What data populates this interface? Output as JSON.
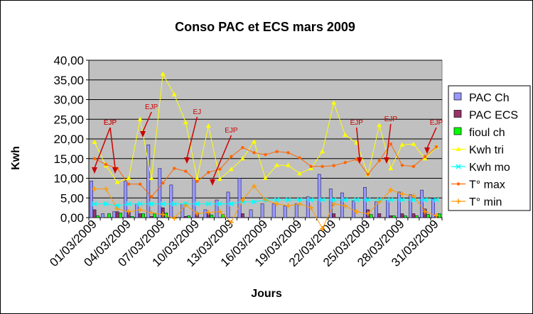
{
  "chart_data": {
    "type": "bar",
    "title": "Conso PAC et ECS mars 2009",
    "xlabel": "Jours",
    "ylabel": "Kwh",
    "ylim": [
      0,
      40
    ],
    "y_ticks": [
      "0,00",
      "5,00",
      "10,00",
      "15,00",
      "20,00",
      "25,00",
      "30,00",
      "35,00",
      "40,00"
    ],
    "x_ticks": [
      "01/03/2009",
      "04/03/2009",
      "07/03/2009",
      "10/03/2009",
      "13/03/2009",
      "16/03/2009",
      "19/03/2009",
      "22/03/2009",
      "25/03/2009",
      "28/03/2009",
      "31/03/2009"
    ],
    "grid": true,
    "legend_position": "right",
    "categories": [
      "01/03/2009",
      "02/03/2009",
      "03/03/2009",
      "04/03/2009",
      "05/03/2009",
      "06/03/2009",
      "07/03/2009",
      "08/03/2009",
      "09/03/2009",
      "10/03/2009",
      "11/03/2009",
      "12/03/2009",
      "13/03/2009",
      "14/03/2009",
      "15/03/2009",
      "16/03/2009",
      "17/03/2009",
      "18/03/2009",
      "19/03/2009",
      "20/03/2009",
      "21/03/2009",
      "22/03/2009",
      "23/03/2009",
      "24/03/2009",
      "25/03/2009",
      "26/03/2009",
      "27/03/2009",
      "28/03/2009",
      "29/03/2009",
      "30/03/2009",
      "31/03/2009"
    ],
    "series": [
      {
        "name": "PAC Ch",
        "kind": "bar",
        "color": "#9999ff",
        "values": [
          9.3,
          1.0,
          1.5,
          9.3,
          3.5,
          18.5,
          12.5,
          8.3,
          3.5,
          10.0,
          2.0,
          4.5,
          6.5,
          10.0,
          2.0,
          3.5,
          3.5,
          3.0,
          3.5,
          5.3,
          11.0,
          7.3,
          6.3,
          4.2,
          7.7,
          4.0,
          4.5,
          6.5,
          5.8,
          7.0,
          4.8
        ]
      },
      {
        "name": "PAC ECS",
        "kind": "bar",
        "color": "#993366",
        "values": [
          2.0,
          0.0,
          1.5,
          1.5,
          1.0,
          0.3,
          2.5,
          0.0,
          0.3,
          1.2,
          1.0,
          0.0,
          0.0,
          1.0,
          0.0,
          0.0,
          0.0,
          0.0,
          0.0,
          0.0,
          0.0,
          1.0,
          0.0,
          0.0,
          2.0,
          1.0,
          0.5,
          1.0,
          1.0,
          2.2,
          0.5
        ]
      },
      {
        "name": "fioul ch",
        "kind": "bar",
        "color": "#00ff00",
        "values": [
          0.5,
          1.0,
          1.2,
          0.3,
          1.0,
          1.0,
          1.2,
          0.0,
          0.5,
          0.0,
          0.7,
          0.8,
          0.0,
          0.0,
          0.0,
          0.0,
          0.0,
          0.0,
          0.0,
          0.0,
          0.0,
          0.0,
          0.0,
          0.0,
          0.8,
          0.0,
          0.5,
          0.5,
          0.5,
          0.8,
          1.0
        ]
      },
      {
        "name": "Kwh tri",
        "kind": "line",
        "color": "#ffff00",
        "values": [
          19.2,
          13.2,
          9.0,
          10.0,
          25.0,
          10.0,
          36.5,
          31.3,
          24.2,
          10.0,
          23.3,
          9.8,
          12.3,
          15.0,
          19.3,
          10.0,
          13.3,
          13.3,
          11.2,
          12.5,
          16.8,
          29.2,
          21.0,
          19.0,
          11.0,
          23.5,
          12.5,
          18.5,
          18.7,
          15.0,
          18.0
        ]
      },
      {
        "name": "Kwh mo",
        "kind": "line",
        "color": "#00ffff",
        "values": [
          3.5,
          3.5,
          3.0,
          3.5,
          3.5,
          3.5,
          3.5,
          3.5,
          3.5,
          3.5,
          3.5,
          3.5,
          3.5,
          4.0,
          4.0,
          4.5,
          4.5,
          4.5,
          4.5,
          4.5,
          4.5,
          4.5,
          4.5,
          4.5,
          4.5,
          4.5,
          4.5,
          4.5,
          4.5,
          4.5,
          4.5
        ]
      },
      {
        "name": "T° max",
        "kind": "line",
        "color": "#ff6600",
        "values": [
          15.0,
          13.5,
          12.5,
          8.5,
          8.5,
          5.3,
          8.8,
          12.5,
          11.8,
          9.2,
          11.5,
          12.3,
          15.5,
          17.8,
          16.5,
          16.0,
          16.8,
          16.5,
          15.2,
          13.0,
          13.0,
          13.2,
          14.0,
          14.8,
          11.0,
          14.5,
          18.7,
          13.3,
          13.0,
          15.5,
          18.0
        ]
      },
      {
        "name": "T° min",
        "kind": "line",
        "color": "#ff9900",
        "values": [
          7.3,
          7.3,
          2.2,
          1.5,
          2.0,
          1.2,
          0.8,
          -0.2,
          3.2,
          1.0,
          1.3,
          1.5,
          -1.2,
          4.5,
          8.0,
          4.5,
          3.5,
          3.0,
          3.5,
          2.5,
          -2.8,
          3.5,
          3.0,
          1.5,
          1.0,
          4.0,
          7.0,
          6.0,
          5.5,
          1.5,
          0.5
        ]
      }
    ],
    "annotations": [
      {
        "text": "EJP",
        "day": 3
      },
      {
        "text": "EJP",
        "day": 4
      },
      {
        "text": "EJP",
        "day": 6
      },
      {
        "text": "EJ",
        "day": 10
      },
      {
        "text": "EJP",
        "day": 13
      },
      {
        "text": "EJP",
        "day": 24
      },
      {
        "text": "EJP",
        "day": 27
      },
      {
        "text": "EJP",
        "day": 31
      }
    ]
  }
}
